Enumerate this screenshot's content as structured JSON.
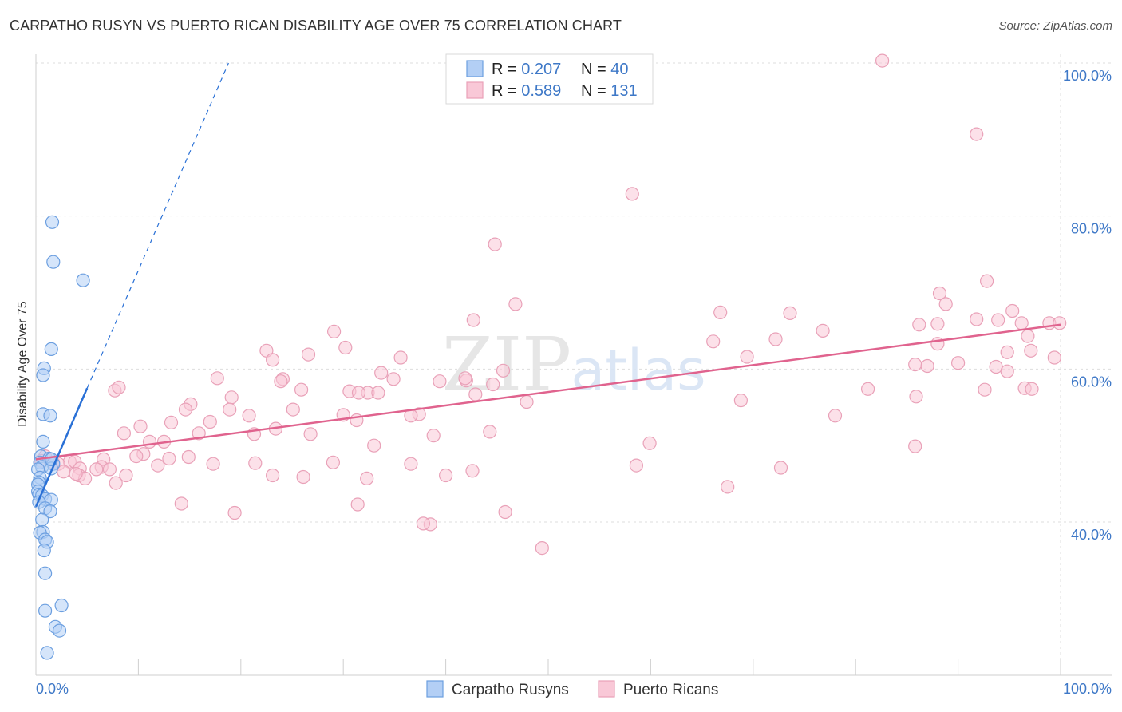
{
  "chart_data": {
    "type": "scatter",
    "title": "CARPATHO RUSYN VS PUERTO RICAN DISABILITY AGE OVER 75 CORRELATION CHART",
    "source": "Source: ZipAtlas.com",
    "xlabel": "",
    "ylabel": "Disability Age Over 75",
    "xlim": [
      0,
      100
    ],
    "ylim": [
      20,
      100
    ],
    "x_tick_labels": [
      "0.0%",
      "100.0%"
    ],
    "y_ticks": [
      40,
      60,
      80,
      100
    ],
    "y_tick_labels": [
      "40.0%",
      "60.0%",
      "80.0%",
      "100.0%"
    ],
    "grid": true,
    "legend_position": "bottom",
    "watermark": "ZIPatlas",
    "stats": [
      {
        "r_label": "R = ",
        "r": "0.207",
        "n_label": "N = ",
        "n": "40"
      },
      {
        "r_label": "R = ",
        "r": "0.589",
        "n_label": "N = ",
        "n": "131"
      }
    ],
    "series": [
      {
        "name": "Carpatho Rusyns",
        "color": "#6c9fe0",
        "fill": "#b3cff5",
        "line_color": "#2970d6",
        "trend": {
          "x0": 0.0,
          "y0": 42.0,
          "x1": 5.0,
          "y1": 57.5,
          "dash_x1": 18.8,
          "dash_y1": 100.0
        },
        "points": [
          [
            1.6,
            79.2
          ],
          [
            1.7,
            74.0
          ],
          [
            4.6,
            71.6
          ],
          [
            1.5,
            62.6
          ],
          [
            0.8,
            60.1
          ],
          [
            0.7,
            59.2
          ],
          [
            0.7,
            54.1
          ],
          [
            1.4,
            53.9
          ],
          [
            0.7,
            50.5
          ],
          [
            0.5,
            48.6
          ],
          [
            1.3,
            48.3
          ],
          [
            0.4,
            47.8
          ],
          [
            1.7,
            47.6
          ],
          [
            0.6,
            47.2
          ],
          [
            1.5,
            47.0
          ],
          [
            0.2,
            46.9
          ],
          [
            0.4,
            45.8
          ],
          [
            0.3,
            45.2
          ],
          [
            0.2,
            44.9
          ],
          [
            0.2,
            44.0
          ],
          [
            0.3,
            43.6
          ],
          [
            0.6,
            43.5
          ],
          [
            0.9,
            43.0
          ],
          [
            1.5,
            42.9
          ],
          [
            0.3,
            42.6
          ],
          [
            0.9,
            41.8
          ],
          [
            1.4,
            41.4
          ],
          [
            0.6,
            40.3
          ],
          [
            0.7,
            38.7
          ],
          [
            0.4,
            38.6
          ],
          [
            0.9,
            37.7
          ],
          [
            1.1,
            37.4
          ],
          [
            0.8,
            36.3
          ],
          [
            0.9,
            33.3
          ],
          [
            2.5,
            29.1
          ],
          [
            0.9,
            28.4
          ],
          [
            1.9,
            26.3
          ],
          [
            2.3,
            25.8
          ],
          [
            1.1,
            22.9
          ],
          [
            1.5,
            48.2
          ]
        ]
      },
      {
        "name": "Puerto Ricans",
        "color": "#e9a1b8",
        "fill": "#f9c8d7",
        "line_color": "#e0638e",
        "trend": {
          "x0": 0.0,
          "y0": 48.2,
          "x1": 100.0,
          "y1": 65.8
        },
        "points": [
          [
            82.6,
            100.3
          ],
          [
            91.8,
            90.7
          ],
          [
            58.2,
            82.9
          ],
          [
            44.8,
            76.3
          ],
          [
            46.8,
            68.5
          ],
          [
            92.8,
            71.5
          ],
          [
            88.2,
            69.9
          ],
          [
            88.8,
            68.5
          ],
          [
            66.8,
            67.4
          ],
          [
            73.6,
            67.3
          ],
          [
            95.3,
            67.6
          ],
          [
            91.8,
            66.5
          ],
          [
            93.9,
            66.4
          ],
          [
            96.2,
            66.0
          ],
          [
            98.9,
            66.0
          ],
          [
            99.9,
            66.0
          ],
          [
            86.2,
            65.8
          ],
          [
            88.0,
            65.9
          ],
          [
            76.8,
            65.0
          ],
          [
            42.7,
            66.4
          ],
          [
            29.1,
            64.9
          ],
          [
            66.1,
            63.6
          ],
          [
            72.2,
            63.9
          ],
          [
            96.8,
            64.3
          ],
          [
            88.0,
            63.3
          ],
          [
            97.1,
            62.4
          ],
          [
            22.5,
            62.4
          ],
          [
            30.2,
            62.8
          ],
          [
            26.6,
            61.9
          ],
          [
            35.6,
            61.5
          ],
          [
            23.1,
            61.2
          ],
          [
            69.4,
            61.6
          ],
          [
            99.4,
            61.5
          ],
          [
            94.8,
            62.2
          ],
          [
            85.8,
            60.6
          ],
          [
            87.0,
            60.4
          ],
          [
            90.0,
            60.8
          ],
          [
            93.7,
            60.3
          ],
          [
            94.8,
            59.7
          ],
          [
            45.6,
            59.8
          ],
          [
            33.7,
            59.5
          ],
          [
            24.1,
            58.7
          ],
          [
            39.4,
            58.4
          ],
          [
            42.0,
            58.5
          ],
          [
            23.9,
            58.4
          ],
          [
            34.9,
            58.7
          ],
          [
            41.9,
            58.8
          ],
          [
            44.6,
            58.0
          ],
          [
            17.7,
            58.8
          ],
          [
            7.7,
            57.2
          ],
          [
            25.9,
            57.3
          ],
          [
            8.1,
            57.6
          ],
          [
            30.6,
            57.1
          ],
          [
            32.4,
            56.9
          ],
          [
            33.4,
            56.9
          ],
          [
            31.5,
            56.9
          ],
          [
            42.9,
            56.7
          ],
          [
            19.1,
            56.3
          ],
          [
            96.5,
            57.5
          ],
          [
            97.2,
            57.4
          ],
          [
            92.6,
            57.3
          ],
          [
            81.2,
            57.4
          ],
          [
            85.9,
            56.4
          ],
          [
            68.8,
            55.9
          ],
          [
            47.9,
            55.7
          ],
          [
            15.1,
            55.4
          ],
          [
            18.9,
            54.7
          ],
          [
            14.6,
            54.7
          ],
          [
            20.8,
            53.9
          ],
          [
            78.0,
            53.9
          ],
          [
            25.1,
            54.7
          ],
          [
            37.4,
            54.1
          ],
          [
            30.0,
            54.0
          ],
          [
            13.2,
            53.0
          ],
          [
            31.3,
            53.3
          ],
          [
            36.6,
            53.9
          ],
          [
            17.0,
            53.1
          ],
          [
            10.2,
            52.5
          ],
          [
            8.6,
            51.6
          ],
          [
            15.9,
            51.6
          ],
          [
            21.3,
            51.5
          ],
          [
            23.4,
            52.2
          ],
          [
            26.8,
            51.5
          ],
          [
            38.8,
            51.3
          ],
          [
            44.3,
            51.8
          ],
          [
            33.0,
            50.0
          ],
          [
            12.5,
            50.5
          ],
          [
            59.9,
            50.3
          ],
          [
            11.1,
            50.5
          ],
          [
            10.5,
            48.9
          ],
          [
            14.9,
            48.5
          ],
          [
            13.0,
            48.3
          ],
          [
            3.3,
            47.9
          ],
          [
            3.8,
            47.9
          ],
          [
            6.6,
            48.2
          ],
          [
            9.8,
            48.6
          ],
          [
            0.9,
            48.6
          ],
          [
            0.5,
            48.0
          ],
          [
            1.7,
            47.8
          ],
          [
            2.2,
            47.6
          ],
          [
            6.4,
            47.2
          ],
          [
            11.9,
            47.4
          ],
          [
            17.3,
            47.6
          ],
          [
            21.4,
            47.7
          ],
          [
            29.0,
            47.8
          ],
          [
            36.6,
            47.6
          ],
          [
            58.6,
            47.4
          ],
          [
            72.7,
            47.1
          ],
          [
            85.8,
            49.9
          ],
          [
            4.3,
            47.0
          ],
          [
            5.9,
            46.9
          ],
          [
            7.2,
            46.9
          ],
          [
            2.7,
            46.6
          ],
          [
            4.2,
            46.1
          ],
          [
            4.8,
            45.7
          ],
          [
            3.9,
            46.3
          ],
          [
            8.8,
            46.1
          ],
          [
            7.8,
            45.1
          ],
          [
            23.1,
            46.1
          ],
          [
            26.1,
            45.9
          ],
          [
            32.3,
            45.7
          ],
          [
            40.0,
            46.1
          ],
          [
            42.6,
            46.7
          ],
          [
            14.2,
            42.4
          ],
          [
            31.4,
            42.3
          ],
          [
            67.5,
            44.6
          ],
          [
            19.4,
            41.2
          ],
          [
            45.8,
            41.3
          ],
          [
            38.5,
            39.7
          ],
          [
            37.8,
            39.8
          ],
          [
            49.4,
            36.6
          ]
        ]
      }
    ]
  }
}
